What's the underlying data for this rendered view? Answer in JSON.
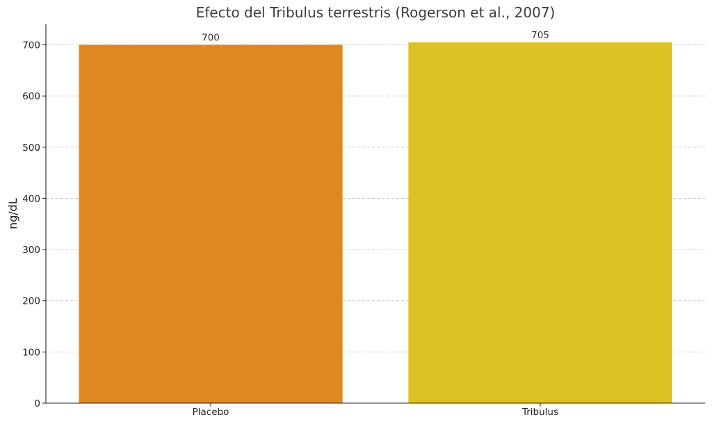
{
  "chart_data": {
    "type": "bar",
    "title": "Efecto del Tribulus terrestris (Rogerson et al., 2007)",
    "xlabel": "",
    "ylabel": "ng/dL",
    "categories": [
      "Placebo",
      "Tribulus"
    ],
    "values": [
      700,
      705
    ],
    "value_labels": [
      "700",
      "705"
    ],
    "colors": [
      "#E08820",
      "#DEC123"
    ],
    "ylim": [
      0,
      740
    ],
    "yticks": [
      0,
      100,
      200,
      300,
      400,
      500,
      600,
      700
    ],
    "grid": true,
    "legend": null
  }
}
